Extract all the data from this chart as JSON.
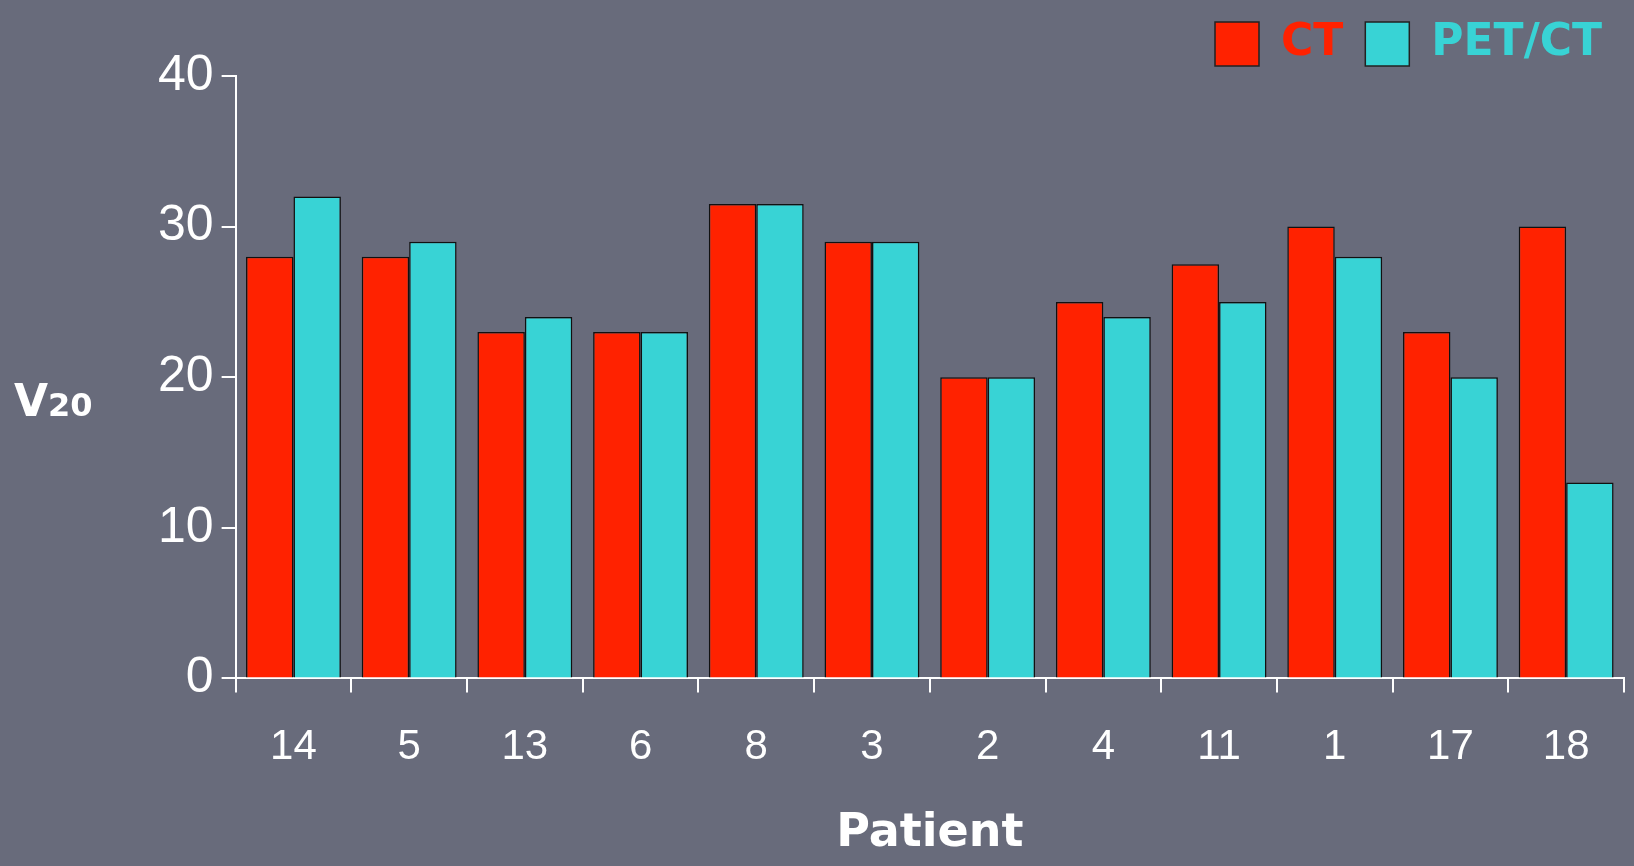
{
  "chart_data": {
    "type": "bar",
    "xlabel": "Patient",
    "ylabel": "V$_{20}$",
    "categories": [
      "14",
      "5",
      "13",
      "6",
      "8",
      "3",
      "2",
      "4",
      "11",
      "1",
      "17",
      "18"
    ],
    "series": [
      {
        "name": "CT",
        "color": "#ff2200",
        "values": [
          28,
          28,
          23,
          23,
          31.5,
          29,
          20,
          25,
          27.5,
          30,
          23,
          30
        ]
      },
      {
        "name": "PET/CT",
        "color": "#38d3d5",
        "values": [
          32,
          29,
          24,
          23,
          31.5,
          29,
          20,
          24,
          25,
          28,
          20,
          13
        ]
      }
    ],
    "ylim": [
      0,
      40
    ],
    "yticks": [
      0,
      10,
      20,
      30,
      40
    ],
    "grid": false,
    "legend": "top right"
  }
}
